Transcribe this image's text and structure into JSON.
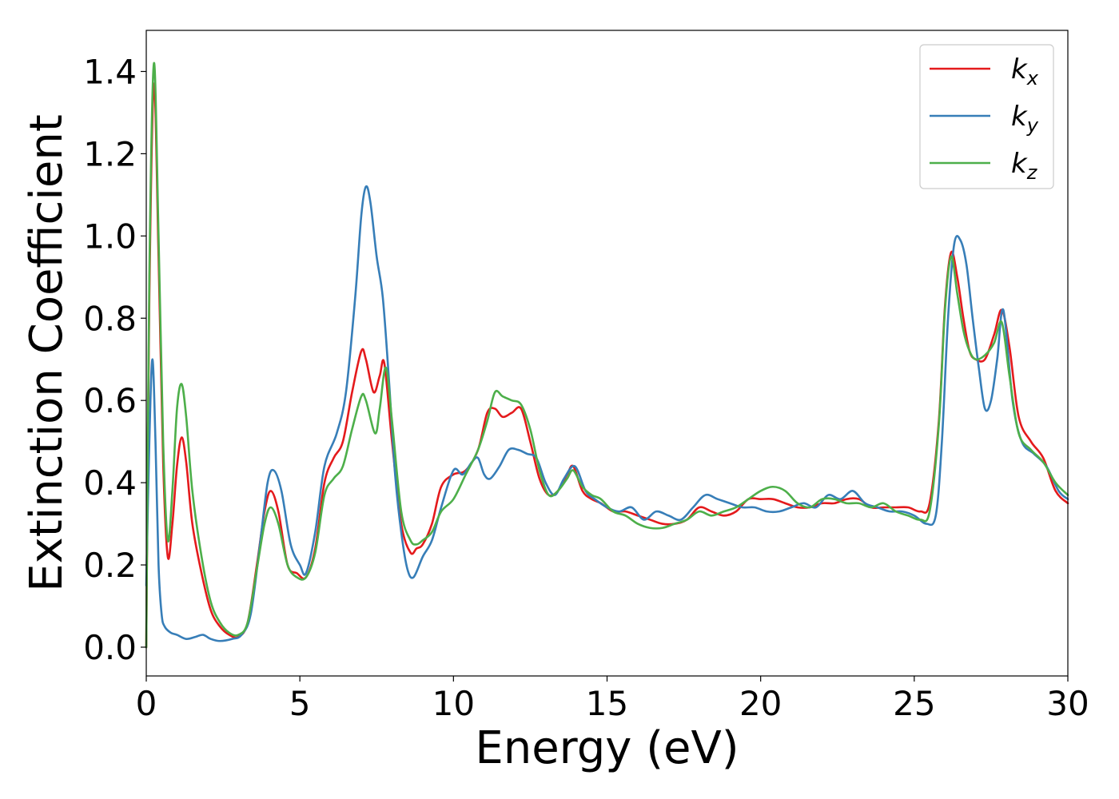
{
  "chart_data": {
    "type": "line",
    "title": "",
    "xlabel": "Energy (eV)",
    "ylabel": "Extinction Coefficient",
    "xlim": [
      0,
      30
    ],
    "ylim": [
      -0.07,
      1.5
    ],
    "xticks": [
      0,
      5,
      10,
      15,
      20,
      25,
      30
    ],
    "xtick_labels": [
      "0",
      "5",
      "10",
      "15",
      "20",
      "25",
      "30"
    ],
    "yticks": [
      0.0,
      0.2,
      0.4,
      0.6,
      0.8,
      1.0,
      1.2,
      1.4
    ],
    "ytick_labels": [
      "0.0",
      "0.2",
      "0.4",
      "0.6",
      "0.8",
      "1.0",
      "1.2",
      "1.4"
    ],
    "grid": false,
    "legend_position": "top-right",
    "series": [
      {
        "name": "k_x",
        "legend_base": "k",
        "legend_sub": "x",
        "color": "#e41a1c",
        "x": [
          0,
          0.1,
          0.25,
          0.4,
          0.55,
          0.7,
          0.85,
          1.0,
          1.15,
          1.3,
          1.5,
          1.8,
          2.1,
          2.4,
          2.7,
          3.0,
          3.3,
          3.6,
          3.85,
          4.05,
          4.3,
          4.6,
          4.9,
          5.2,
          5.5,
          5.8,
          6.1,
          6.4,
          6.7,
          7.0,
          7.15,
          7.4,
          7.6,
          7.75,
          8.0,
          8.3,
          8.6,
          8.8,
          9.0,
          9.3,
          9.6,
          10.0,
          10.4,
          10.8,
          11.1,
          11.35,
          11.6,
          11.9,
          12.2,
          12.5,
          12.8,
          13.1,
          13.4,
          13.7,
          13.9,
          14.2,
          14.5,
          14.8,
          15.2,
          15.6,
          16.0,
          16.4,
          16.8,
          17.2,
          17.6,
          18.0,
          18.4,
          18.8,
          19.2,
          19.6,
          20.0,
          20.4,
          20.8,
          21.2,
          21.6,
          22.0,
          22.4,
          22.8,
          23.2,
          23.6,
          24.0,
          24.4,
          24.8,
          25.2,
          25.5,
          25.8,
          26.0,
          26.2,
          26.4,
          26.6,
          26.8,
          27.0,
          27.3,
          27.6,
          27.85,
          28.1,
          28.4,
          28.8,
          29.2,
          29.6,
          30.0
        ],
        "y": [
          0.0,
          0.85,
          1.37,
          0.95,
          0.45,
          0.22,
          0.3,
          0.44,
          0.51,
          0.45,
          0.3,
          0.18,
          0.09,
          0.05,
          0.03,
          0.025,
          0.06,
          0.2,
          0.33,
          0.38,
          0.33,
          0.2,
          0.18,
          0.17,
          0.24,
          0.4,
          0.46,
          0.5,
          0.62,
          0.72,
          0.7,
          0.62,
          0.66,
          0.69,
          0.5,
          0.3,
          0.23,
          0.24,
          0.25,
          0.3,
          0.39,
          0.42,
          0.43,
          0.48,
          0.57,
          0.58,
          0.56,
          0.57,
          0.58,
          0.5,
          0.41,
          0.37,
          0.38,
          0.42,
          0.44,
          0.38,
          0.36,
          0.35,
          0.33,
          0.33,
          0.32,
          0.31,
          0.3,
          0.3,
          0.31,
          0.34,
          0.33,
          0.32,
          0.33,
          0.36,
          0.36,
          0.36,
          0.35,
          0.34,
          0.34,
          0.35,
          0.35,
          0.36,
          0.36,
          0.34,
          0.34,
          0.34,
          0.34,
          0.33,
          0.35,
          0.55,
          0.83,
          0.96,
          0.9,
          0.8,
          0.72,
          0.7,
          0.7,
          0.76,
          0.82,
          0.73,
          0.56,
          0.5,
          0.46,
          0.38,
          0.35
        ]
      },
      {
        "name": "k_y",
        "legend_base": "k",
        "legend_sub": "y",
        "color": "#377eb8",
        "x": [
          0,
          0.1,
          0.2,
          0.3,
          0.4,
          0.5,
          0.6,
          0.8,
          1.0,
          1.3,
          1.6,
          1.85,
          2.1,
          2.4,
          2.8,
          3.1,
          3.4,
          3.7,
          3.95,
          4.15,
          4.4,
          4.7,
          5.0,
          5.2,
          5.5,
          5.8,
          6.2,
          6.5,
          6.8,
          7.0,
          7.15,
          7.3,
          7.5,
          7.7,
          7.9,
          8.1,
          8.3,
          8.5,
          8.7,
          9.0,
          9.3,
          9.6,
          10.0,
          10.3,
          10.6,
          10.8,
          11.0,
          11.2,
          11.5,
          11.8,
          12.1,
          12.4,
          12.7,
          13.0,
          13.3,
          13.6,
          13.95,
          14.3,
          14.6,
          15.0,
          15.4,
          15.8,
          16.2,
          16.6,
          17.0,
          17.4,
          17.8,
          18.2,
          18.6,
          19.0,
          19.4,
          19.8,
          20.2,
          20.6,
          21.0,
          21.4,
          21.8,
          22.2,
          22.6,
          23.0,
          23.4,
          23.8,
          24.2,
          24.6,
          25.0,
          25.4,
          25.7,
          25.9,
          26.1,
          26.3,
          26.5,
          26.7,
          26.9,
          27.1,
          27.3,
          27.5,
          27.7,
          27.9,
          28.2,
          28.5,
          28.9,
          29.3,
          29.7,
          30.0
        ],
        "y": [
          0.15,
          0.5,
          0.7,
          0.5,
          0.2,
          0.08,
          0.05,
          0.035,
          0.03,
          0.02,
          0.025,
          0.03,
          0.02,
          0.015,
          0.02,
          0.03,
          0.08,
          0.25,
          0.4,
          0.43,
          0.38,
          0.25,
          0.2,
          0.18,
          0.28,
          0.44,
          0.52,
          0.62,
          0.85,
          1.05,
          1.12,
          1.08,
          0.95,
          0.85,
          0.65,
          0.42,
          0.28,
          0.19,
          0.17,
          0.22,
          0.26,
          0.34,
          0.43,
          0.42,
          0.45,
          0.46,
          0.42,
          0.41,
          0.44,
          0.48,
          0.48,
          0.47,
          0.46,
          0.4,
          0.37,
          0.41,
          0.44,
          0.38,
          0.36,
          0.34,
          0.33,
          0.34,
          0.31,
          0.33,
          0.32,
          0.31,
          0.34,
          0.37,
          0.36,
          0.35,
          0.34,
          0.34,
          0.33,
          0.33,
          0.34,
          0.35,
          0.34,
          0.37,
          0.36,
          0.38,
          0.35,
          0.34,
          0.33,
          0.33,
          0.32,
          0.3,
          0.32,
          0.5,
          0.8,
          0.98,
          0.99,
          0.93,
          0.8,
          0.68,
          0.58,
          0.6,
          0.7,
          0.82,
          0.6,
          0.5,
          0.47,
          0.44,
          0.38,
          0.36
        ]
      },
      {
        "name": "k_z",
        "legend_base": "k",
        "legend_sub": "z",
        "color": "#4daf4a",
        "x": [
          0,
          0.1,
          0.25,
          0.4,
          0.55,
          0.7,
          0.85,
          1.0,
          1.15,
          1.3,
          1.5,
          1.8,
          2.1,
          2.4,
          2.7,
          3.0,
          3.3,
          3.6,
          3.85,
          4.05,
          4.3,
          4.6,
          4.9,
          5.2,
          5.5,
          5.8,
          6.1,
          6.4,
          6.7,
          7.0,
          7.15,
          7.45,
          7.6,
          7.8,
          8.0,
          8.3,
          8.6,
          8.8,
          9.0,
          9.3,
          9.6,
          10.0,
          10.4,
          10.8,
          11.1,
          11.35,
          11.6,
          11.9,
          12.2,
          12.5,
          12.8,
          13.1,
          13.4,
          13.7,
          13.9,
          14.2,
          14.5,
          14.8,
          15.2,
          15.6,
          16.0,
          16.4,
          16.8,
          17.2,
          17.6,
          18.0,
          18.4,
          18.8,
          19.2,
          19.6,
          20.0,
          20.4,
          20.8,
          21.2,
          21.6,
          22.0,
          22.4,
          22.8,
          23.2,
          23.6,
          24.0,
          24.4,
          24.8,
          25.2,
          25.5,
          25.8,
          26.0,
          26.2,
          26.4,
          26.6,
          26.8,
          27.0,
          27.3,
          27.6,
          27.85,
          28.1,
          28.4,
          28.8,
          29.2,
          29.6,
          30.0
        ],
        "y": [
          0.0,
          0.9,
          1.42,
          1.0,
          0.5,
          0.26,
          0.38,
          0.58,
          0.64,
          0.56,
          0.38,
          0.22,
          0.11,
          0.06,
          0.035,
          0.03,
          0.06,
          0.19,
          0.3,
          0.34,
          0.3,
          0.2,
          0.17,
          0.17,
          0.23,
          0.37,
          0.41,
          0.44,
          0.53,
          0.61,
          0.6,
          0.52,
          0.58,
          0.68,
          0.55,
          0.33,
          0.26,
          0.25,
          0.26,
          0.28,
          0.33,
          0.36,
          0.42,
          0.48,
          0.55,
          0.62,
          0.61,
          0.6,
          0.59,
          0.53,
          0.43,
          0.37,
          0.38,
          0.41,
          0.43,
          0.39,
          0.37,
          0.36,
          0.33,
          0.32,
          0.3,
          0.29,
          0.29,
          0.3,
          0.31,
          0.33,
          0.32,
          0.33,
          0.34,
          0.36,
          0.38,
          0.39,
          0.38,
          0.35,
          0.34,
          0.36,
          0.36,
          0.35,
          0.35,
          0.34,
          0.35,
          0.33,
          0.32,
          0.31,
          0.33,
          0.54,
          0.82,
          0.95,
          0.86,
          0.77,
          0.72,
          0.7,
          0.71,
          0.74,
          0.79,
          0.66,
          0.52,
          0.48,
          0.45,
          0.4,
          0.37
        ]
      }
    ]
  }
}
